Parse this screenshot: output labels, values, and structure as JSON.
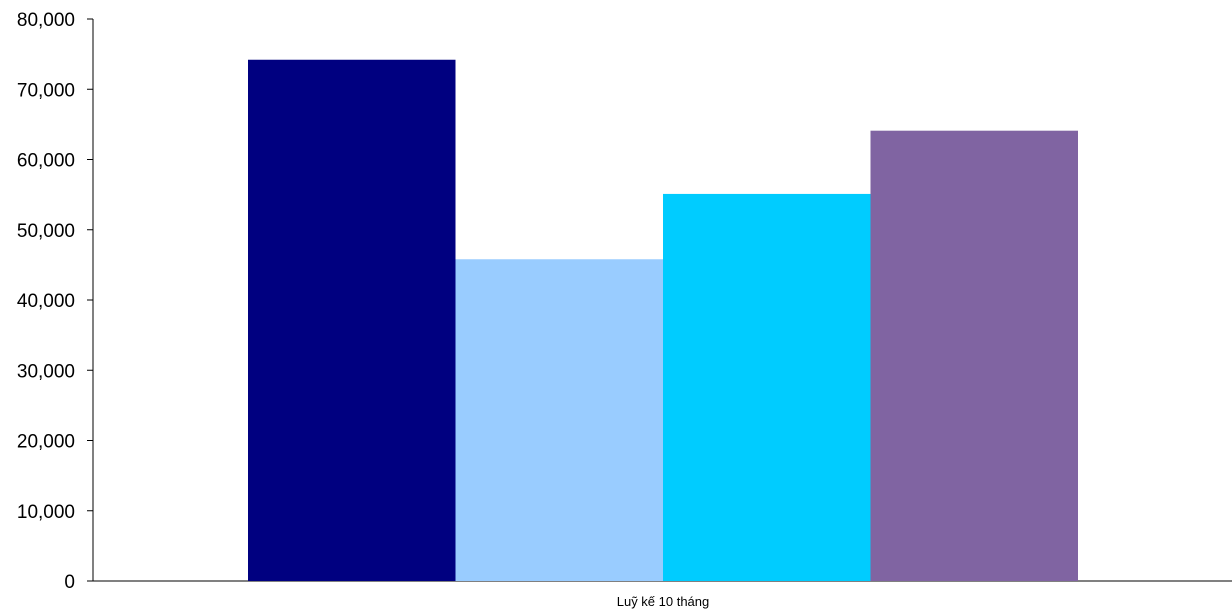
{
  "chart_data": {
    "type": "bar",
    "categories": [
      "Luỹ kế 10 tháng"
    ],
    "series": [
      {
        "values": [
          74200
        ],
        "color": "#000080"
      },
      {
        "values": [
          45800
        ],
        "color": "#99ccff"
      },
      {
        "values": [
          55100
        ],
        "color": "#00ccff"
      },
      {
        "values": [
          64100
        ],
        "color": "#8064a2"
      }
    ],
    "title": "",
    "xlabel": "",
    "ylabel": "",
    "ylim": [
      0,
      80000
    ],
    "yticks": [
      "0",
      "10,000",
      "20,000",
      "30,000",
      "40,000",
      "50,000",
      "60,000",
      "70,000",
      "80,000"
    ],
    "grid": false,
    "legend": "none"
  }
}
